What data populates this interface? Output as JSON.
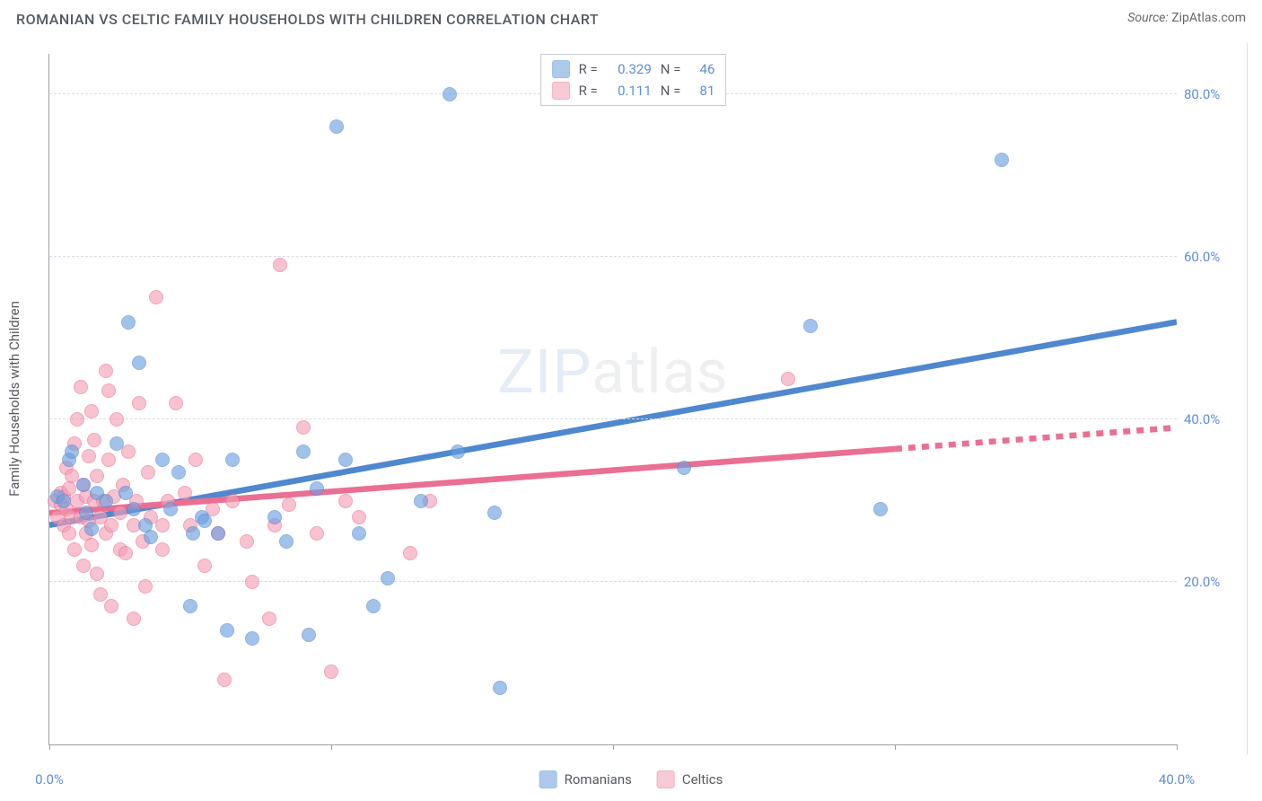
{
  "header": {
    "title": "ROMANIAN VS CELTIC FAMILY HOUSEHOLDS WITH CHILDREN CORRELATION CHART",
    "source_label": "Source:",
    "source_value": "ZipAtlas.com"
  },
  "ylabel": "Family Households with Children",
  "watermark": {
    "a": "ZIP",
    "b": "atlas"
  },
  "chart": {
    "type": "scatter",
    "xlim": [
      0,
      40
    ],
    "ylim": [
      0,
      85
    ],
    "xticks": [
      0,
      10,
      20,
      30,
      40
    ],
    "xtick_labels": [
      "0.0%",
      "",
      "",
      "",
      "40.0%"
    ],
    "yticks": [
      20,
      40,
      60,
      80
    ],
    "ytick_labels": [
      "20.0%",
      "40.0%",
      "60.0%",
      "80.0%"
    ],
    "grid_color": "#d8dce1",
    "axis_color": "#9aa0a6",
    "background_color": "#ffffff",
    "marker_radius": 8,
    "marker_border_width": 1.5,
    "marker_fill_opacity": 0.28,
    "label_fontsize": 15,
    "title_fontsize": 16,
    "tick_color": "#5b8fd6"
  },
  "series": [
    {
      "name": "Romanians",
      "color": "#6b9fe0",
      "stroke": "#4f88cf",
      "r_label": "R =",
      "r_value": "0.329",
      "n_label": "N =",
      "n_value": "46",
      "trend": {
        "x0": 0,
        "y0": 27,
        "x1": 40,
        "y1": 52,
        "line_width": 2.2,
        "dash_from_x": 40
      },
      "points": [
        [
          0.3,
          30.5
        ],
        [
          0.5,
          30
        ],
        [
          0.7,
          35
        ],
        [
          0.8,
          36
        ],
        [
          1.2,
          32
        ],
        [
          1.3,
          28.5
        ],
        [
          1.5,
          26.5
        ],
        [
          1.7,
          31
        ],
        [
          2.0,
          30
        ],
        [
          2.4,
          37
        ],
        [
          2.7,
          31
        ],
        [
          2.8,
          52
        ],
        [
          3.2,
          47
        ],
        [
          3.0,
          29
        ],
        [
          3.4,
          27
        ],
        [
          3.6,
          25.5
        ],
        [
          4.0,
          35
        ],
        [
          4.3,
          29
        ],
        [
          4.6,
          33.5
        ],
        [
          5.1,
          26
        ],
        [
          5.4,
          28
        ],
        [
          5.0,
          17
        ],
        [
          5.5,
          27.5
        ],
        [
          6.0,
          26.0
        ],
        [
          6.3,
          14
        ],
        [
          6.5,
          35
        ],
        [
          7.2,
          13
        ],
        [
          8.0,
          28
        ],
        [
          8.4,
          25
        ],
        [
          9.0,
          36
        ],
        [
          9.2,
          13.5
        ],
        [
          9.5,
          31.5
        ],
        [
          10.2,
          76
        ],
        [
          10.5,
          35
        ],
        [
          11.0,
          26
        ],
        [
          11.5,
          17
        ],
        [
          12.0,
          20.5
        ],
        [
          13.2,
          30
        ],
        [
          14.2,
          80
        ],
        [
          14.5,
          36
        ],
        [
          15.8,
          28.5
        ],
        [
          16.0,
          7
        ],
        [
          22.5,
          34
        ],
        [
          27.0,
          51.5
        ],
        [
          29.5,
          29.0
        ],
        [
          33.8,
          72
        ]
      ]
    },
    {
      "name": "Celtics",
      "color": "#f49fb6",
      "stroke": "#ea6f93",
      "r_label": "R =",
      "r_value": "0.111",
      "n_label": "N =",
      "n_value": "81",
      "trend": {
        "x0": 0,
        "y0": 28.5,
        "x1": 40,
        "y1": 39,
        "line_width": 2.2,
        "dash_from_x": 30
      },
      "points": [
        [
          0.2,
          30
        ],
        [
          0.3,
          28
        ],
        [
          0.4,
          31
        ],
        [
          0.4,
          29.5
        ],
        [
          0.5,
          30.5
        ],
        [
          0.5,
          27
        ],
        [
          0.6,
          34
        ],
        [
          0.6,
          29
        ],
        [
          0.7,
          31.5
        ],
        [
          0.7,
          26
        ],
        [
          0.8,
          33
        ],
        [
          0.8,
          28
        ],
        [
          0.9,
          24
        ],
        [
          0.9,
          37
        ],
        [
          1.0,
          30
        ],
        [
          1.0,
          40
        ],
        [
          1.1,
          44
        ],
        [
          1.1,
          28
        ],
        [
          1.2,
          22
        ],
        [
          1.2,
          32
        ],
        [
          1.3,
          30.5
        ],
        [
          1.3,
          26
        ],
        [
          1.4,
          35.5
        ],
        [
          1.4,
          27.5
        ],
        [
          1.5,
          41
        ],
        [
          1.5,
          24.5
        ],
        [
          1.6,
          30
        ],
        [
          1.6,
          37.5
        ],
        [
          1.7,
          33
        ],
        [
          1.7,
          21
        ],
        [
          1.8,
          28
        ],
        [
          1.8,
          18.5
        ],
        [
          1.9,
          30
        ],
        [
          2.0,
          46
        ],
        [
          2.0,
          26
        ],
        [
          2.1,
          35
        ],
        [
          2.1,
          43.5
        ],
        [
          2.2,
          27
        ],
        [
          2.2,
          17
        ],
        [
          2.3,
          30.5
        ],
        [
          2.4,
          40
        ],
        [
          2.5,
          24
        ],
        [
          2.5,
          28.5
        ],
        [
          2.6,
          32
        ],
        [
          2.7,
          23.5
        ],
        [
          2.8,
          36
        ],
        [
          3.0,
          27
        ],
        [
          3.0,
          15.5
        ],
        [
          3.1,
          30
        ],
        [
          3.2,
          42
        ],
        [
          3.3,
          25
        ],
        [
          3.4,
          19.5
        ],
        [
          3.5,
          33.5
        ],
        [
          3.6,
          28
        ],
        [
          3.8,
          55
        ],
        [
          4.0,
          27
        ],
        [
          4.0,
          24
        ],
        [
          4.2,
          30
        ],
        [
          4.5,
          42
        ],
        [
          4.8,
          31
        ],
        [
          5.0,
          27
        ],
        [
          5.2,
          35
        ],
        [
          5.5,
          22
        ],
        [
          5.8,
          29
        ],
        [
          6.0,
          26
        ],
        [
          6.2,
          8
        ],
        [
          6.5,
          30
        ],
        [
          7.0,
          25
        ],
        [
          7.2,
          20
        ],
        [
          7.8,
          15.5
        ],
        [
          8.0,
          27
        ],
        [
          8.2,
          59
        ],
        [
          8.5,
          29.5
        ],
        [
          9.0,
          39
        ],
        [
          9.5,
          26
        ],
        [
          10.0,
          9
        ],
        [
          10.5,
          30
        ],
        [
          11.0,
          28
        ],
        [
          12.8,
          23.5
        ],
        [
          13.5,
          30
        ],
        [
          26.2,
          45
        ]
      ]
    }
  ],
  "legend": {
    "series1": "Romanians",
    "series2": "Celtics"
  }
}
